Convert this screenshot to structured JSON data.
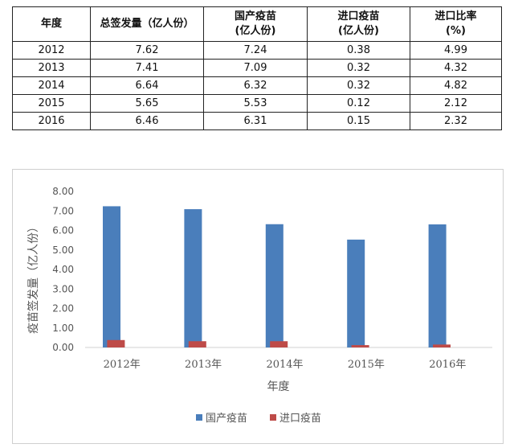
{
  "table": {
    "headers": [
      [
        "年度"
      ],
      [
        "总签发量（亿人份）"
      ],
      [
        "国产疫苗",
        "(亿人份)"
      ],
      [
        "进口疫苗",
        "(亿人份)"
      ],
      [
        "进口比率",
        "(%)"
      ]
    ],
    "rows": [
      [
        "2012",
        "7.62",
        "7.24",
        "0.38",
        "4.99"
      ],
      [
        "2013",
        "7.41",
        "7.09",
        "0.32",
        "4.32"
      ],
      [
        "2014",
        "6.64",
        "6.32",
        "0.32",
        "4.82"
      ],
      [
        "2015",
        "5.65",
        "5.53",
        "0.12",
        "2.12"
      ],
      [
        "2016",
        "6.46",
        "6.31",
        "0.15",
        "2.32"
      ]
    ]
  },
  "chart_data": {
    "type": "bar",
    "categories": [
      "2012年",
      "2013年",
      "2014年",
      "2015年",
      "2016年"
    ],
    "series": [
      {
        "name": "国产疫苗",
        "values": [
          7.24,
          7.09,
          6.32,
          5.53,
          6.31
        ],
        "color": "#4a7ebb"
      },
      {
        "name": "进口疫苗",
        "values": [
          0.38,
          0.32,
          0.32,
          0.12,
          0.15
        ],
        "color": "#be4b48"
      }
    ],
    "xlabel": "年度",
    "ylabel": "疫苗签发量（亿人份）",
    "ylim": [
      0,
      8
    ],
    "yticks": [
      "0.00",
      "1.00",
      "2.00",
      "3.00",
      "4.00",
      "5.00",
      "6.00",
      "7.00",
      "8.00"
    ],
    "grid": false,
    "legend": "bottom"
  }
}
